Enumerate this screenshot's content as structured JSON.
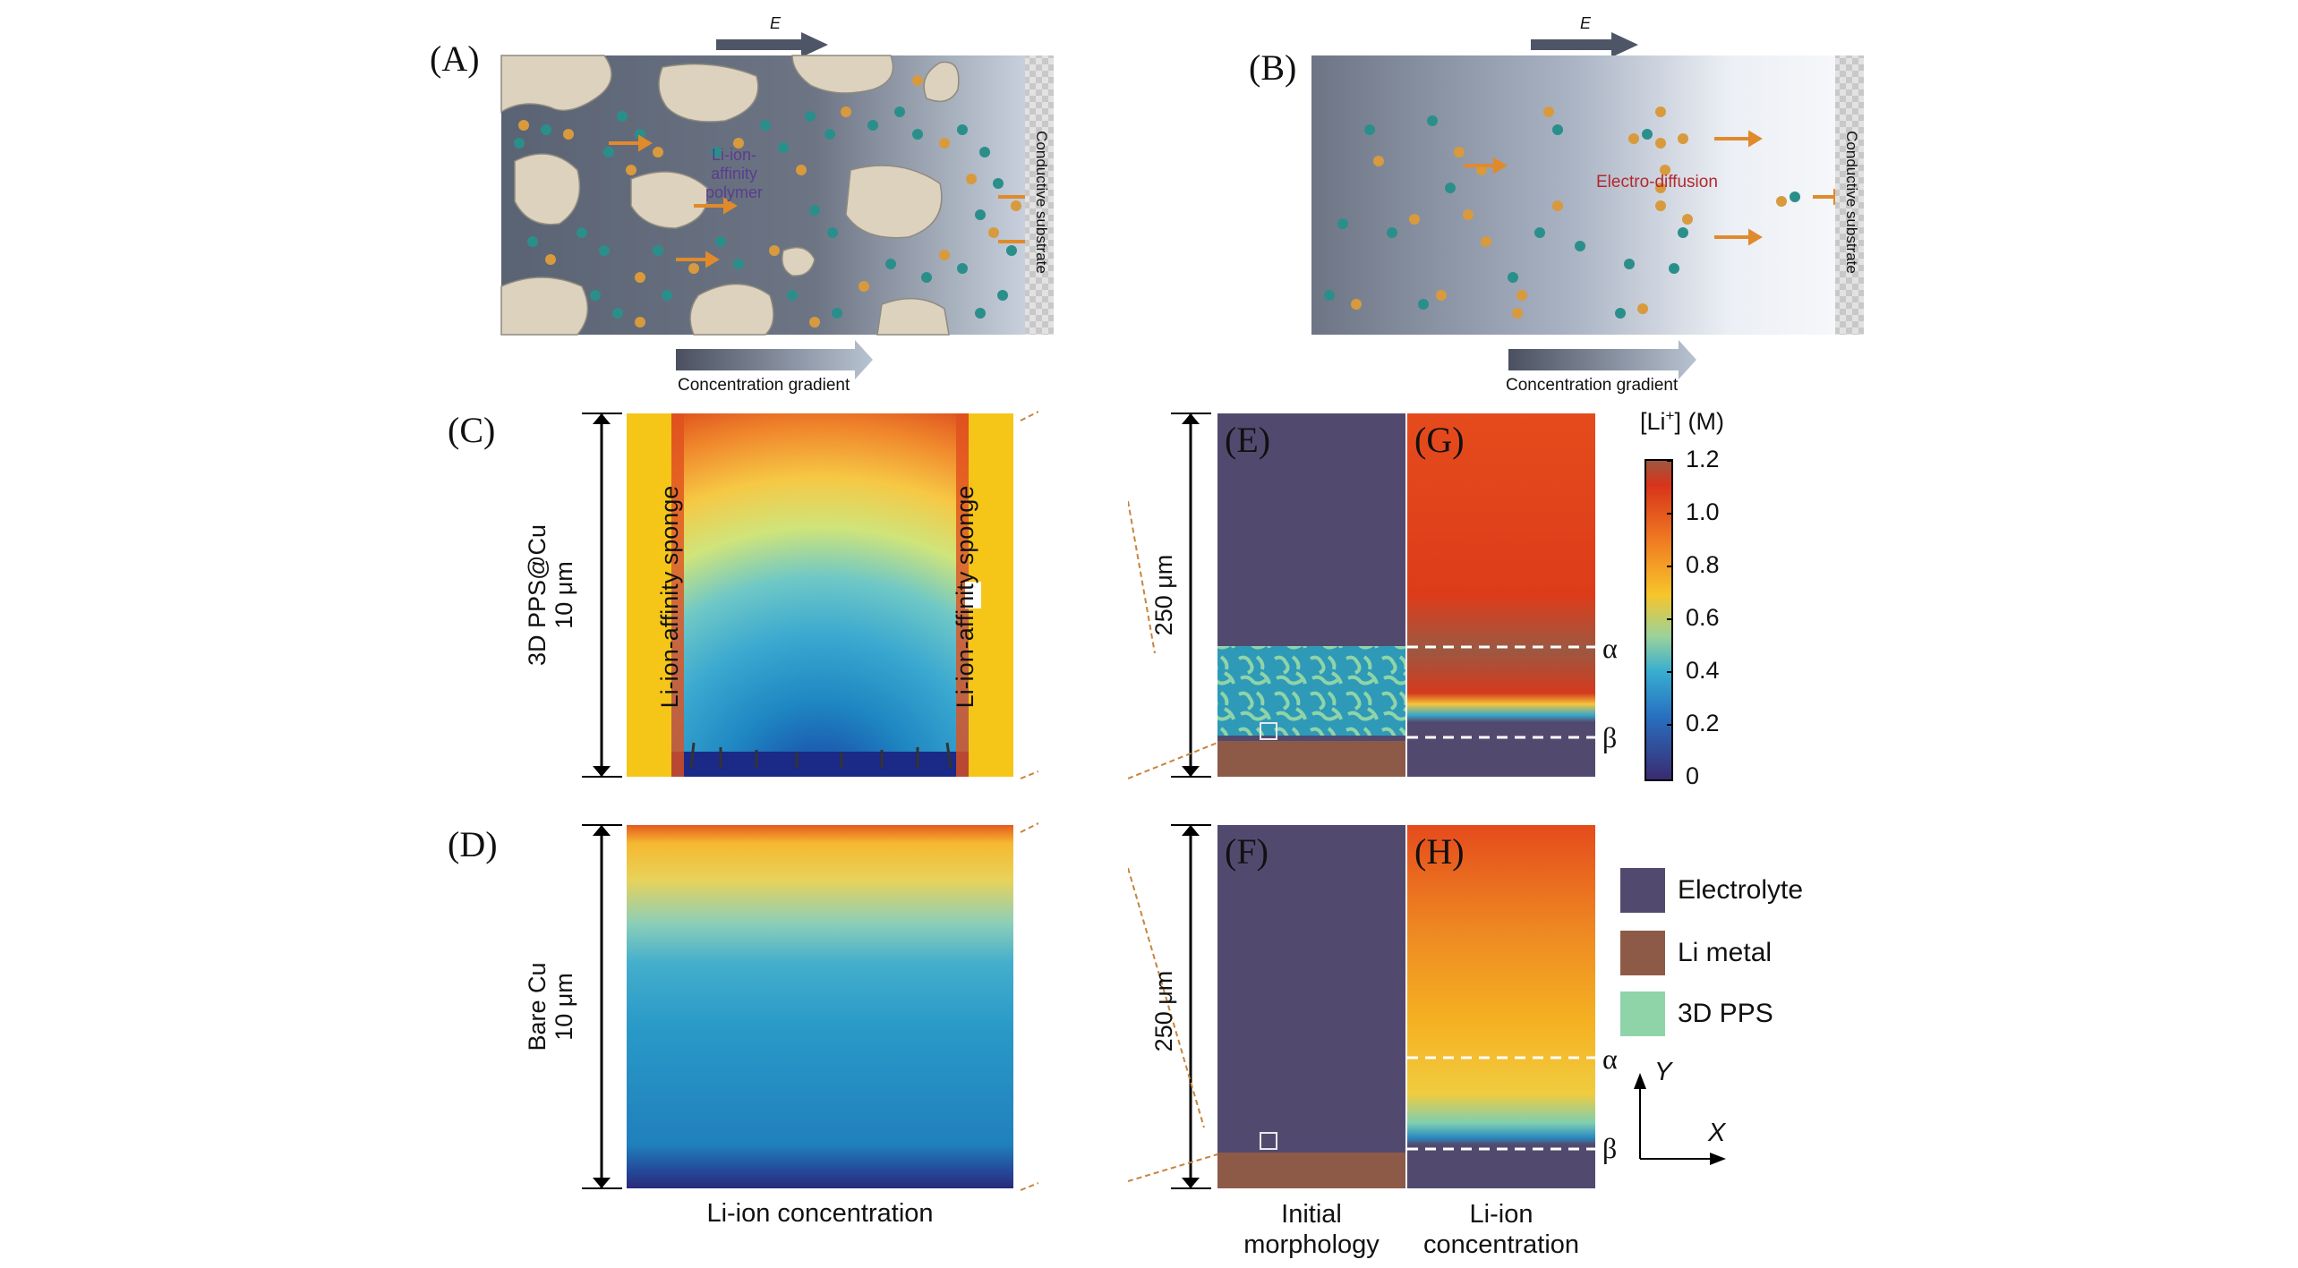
{
  "panel_labels": [
    "(A)",
    "(B)",
    "(C)",
    "(D)",
    "(E)",
    "(F)",
    "(G)",
    "(H)"
  ],
  "panelA": {
    "field_label": "E",
    "polymer_label": [
      "Li-ion-",
      "affinity",
      "polymer"
    ],
    "substrate_label": "Conductive substrate",
    "gradient_label": "Concentration gradient"
  },
  "panelB": {
    "field_label": "E",
    "diffusion_label": "Electro-diffusion",
    "substrate_label": "Conductive substrate",
    "gradient_label": "Concentration gradient"
  },
  "panelC": {
    "side_label_left": "Li-ion-affinity sponge",
    "side_label_right": "Li-ion-affinity sponge",
    "axis_label_1": "3D PPS@Cu",
    "axis_label_2": "10 μm"
  },
  "panelD": {
    "axis_label_1": "Bare Cu",
    "axis_label_2": "10 μm",
    "bottom_label": "Li-ion concentration"
  },
  "panelEG": {
    "scale_label": "250 μm",
    "alpha": "α",
    "beta": "β"
  },
  "panelFH": {
    "scale_label": "250 μm",
    "alpha": "α",
    "beta": "β"
  },
  "column_labels": {
    "left": [
      "Initial",
      "morphology"
    ],
    "right": [
      "Li-ion",
      "concentration"
    ]
  },
  "colorbar": {
    "title_pre": "[Li",
    "title_sup": "+",
    "title_post": "] (M)",
    "ticks": [
      "1.2",
      "1.0",
      "0.8",
      "0.6",
      "0.4",
      "0.2",
      "0"
    ]
  },
  "legend": {
    "items": [
      {
        "label": "Electrolyte",
        "color": "#524a6e"
      },
      {
        "label": "Li metal",
        "color": "#8e5a48"
      },
      {
        "label": "3D PPS",
        "color": "#8fd4a8"
      }
    ]
  },
  "axes": {
    "y": "Y",
    "x": "X"
  },
  "colors": {
    "electrolyte": "#524a6e",
    "li_metal": "#8e5a48",
    "pps": "#8fd4a8",
    "arrow_orange": "#e08a2c",
    "sponge_yellow": "#f5c518",
    "ion_teal": "#2a8f8a",
    "ion_gold": "#d89a3c"
  }
}
